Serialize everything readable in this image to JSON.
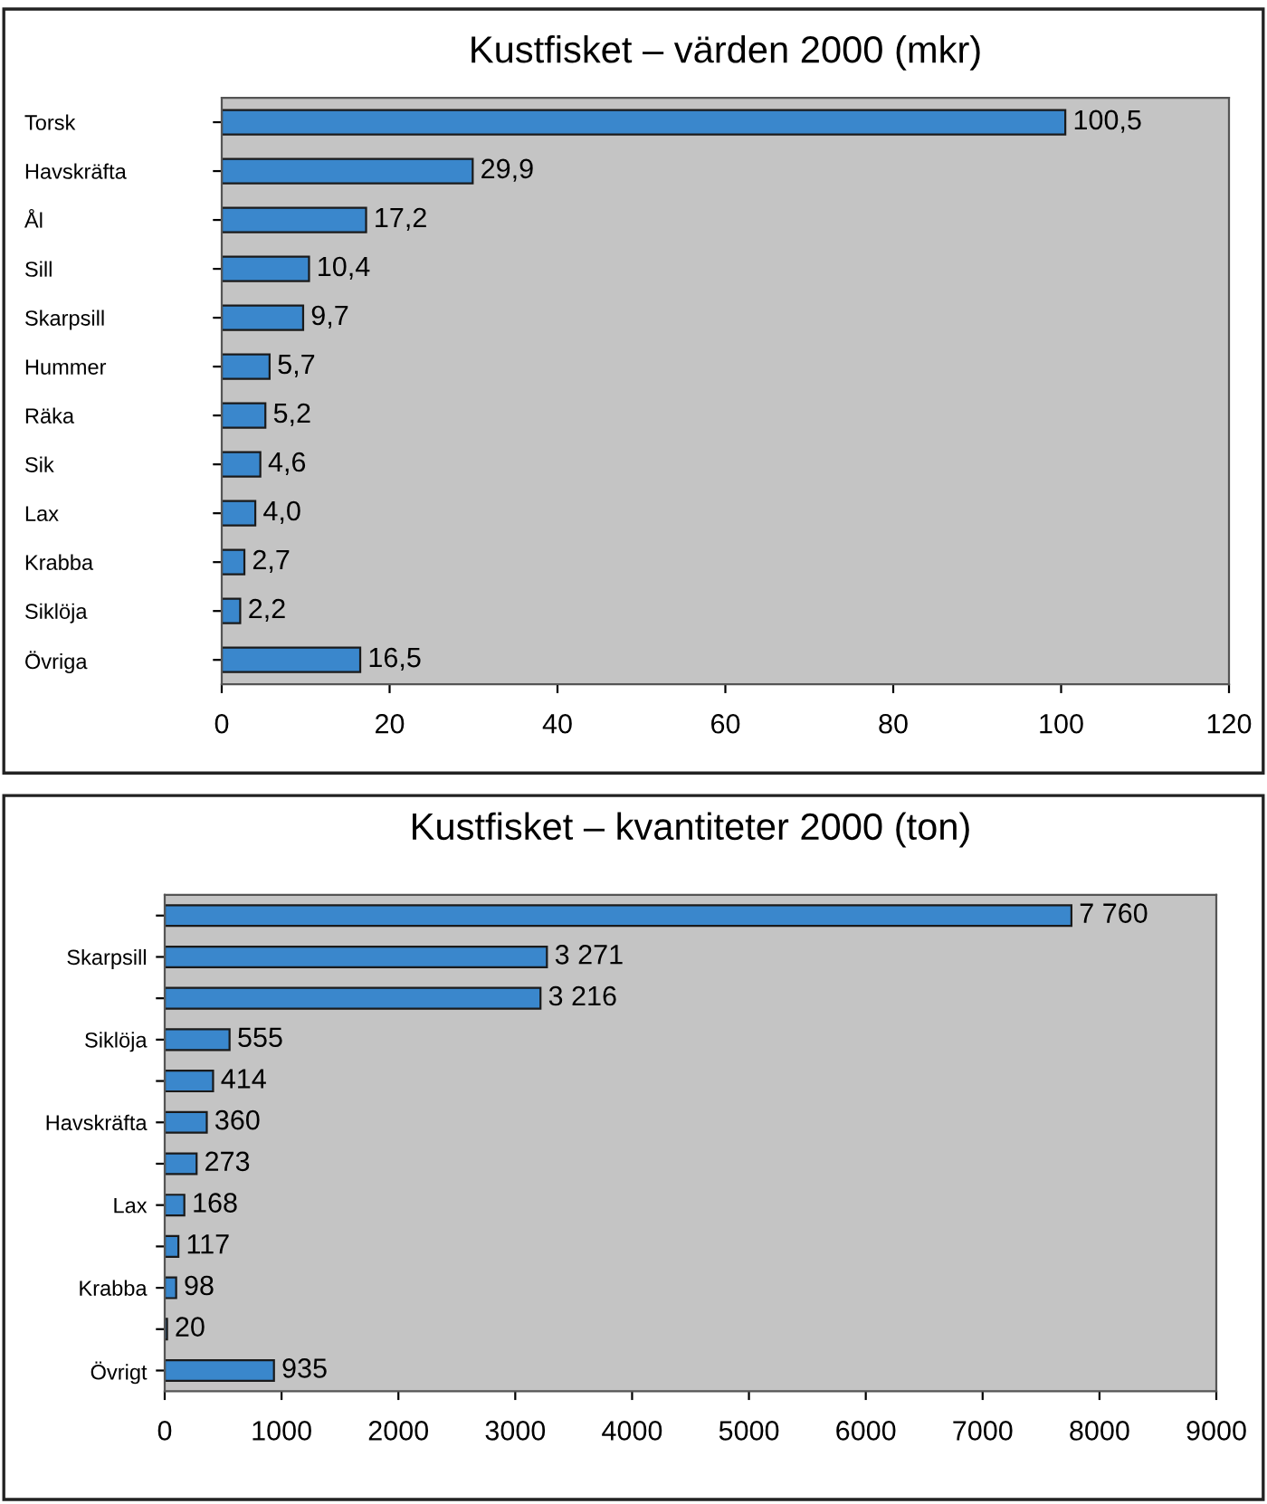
{
  "chart_data": [
    {
      "type": "bar",
      "orientation": "horizontal",
      "title": "Kustfisket – värden 2000 (mkr)",
      "categories": [
        "Torsk",
        "Havskräfta",
        "Ål",
        "Sill",
        "Skarpsill",
        "Hummer",
        "Räka",
        "Sik",
        "Lax",
        "Krabba",
        "Siklöja",
        "Övriga"
      ],
      "values": [
        100.5,
        29.9,
        17.2,
        10.4,
        9.7,
        5.7,
        5.2,
        4.6,
        4.0,
        2.7,
        2.2,
        16.5
      ],
      "color": "#3a87cc",
      "value_labels": [
        "100,5",
        "29,9",
        "17,2",
        "10,4",
        "9,7",
        "5,7",
        "5,2",
        "4,6",
        "4,0",
        "2,7",
        "2,2",
        "16,5"
      ],
      "xlim": [
        0,
        120
      ],
      "xticks": [
        0,
        20,
        40,
        60,
        80,
        100,
        120
      ],
      "grid": false
    },
    {
      "type": "bar",
      "orientation": "horizontal",
      "title": "Kustfisket – kvantiteter 2000 (ton)",
      "categories": [
        null,
        "Skarpsill",
        null,
        "Siklöja",
        null,
        "Havskräfta",
        null,
        "Lax",
        null,
        "Krabba",
        null,
        "Övrigt"
      ],
      "values": [
        7760,
        3271,
        3216,
        555,
        414,
        360,
        273,
        168,
        117,
        98,
        20,
        935
      ],
      "color": "#3a87cc",
      "value_labels": [
        "7 760",
        "3 271",
        "3 216",
        "555",
        "414",
        "360",
        "273",
        "168",
        "117",
        "98",
        "20",
        "935"
      ],
      "xlim": [
        0,
        9000
      ],
      "xticks": [
        0,
        1000,
        2000,
        3000,
        4000,
        5000,
        6000,
        7000,
        8000,
        9000
      ],
      "grid": false
    }
  ]
}
